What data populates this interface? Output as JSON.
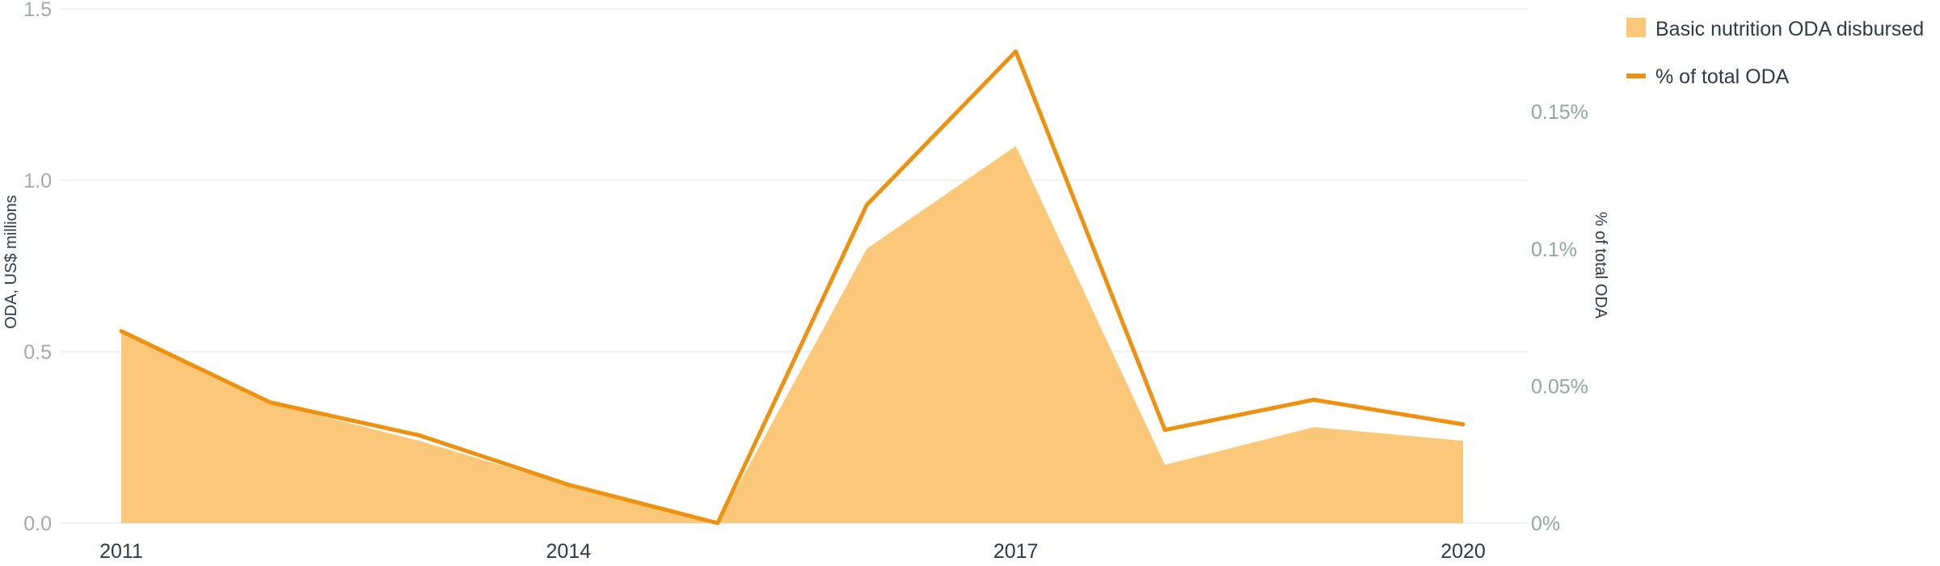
{
  "chart_data": {
    "type": "area",
    "x": [
      2011,
      2012,
      2013,
      2014,
      2015,
      2016,
      2017,
      2018,
      2019,
      2020
    ],
    "x_ticks": [
      "2011",
      "2014",
      "2017",
      "2020"
    ],
    "xlim": [
      2011,
      2020
    ],
    "series": [
      {
        "name": "Basic nutrition ODA disbursed",
        "type": "area",
        "axis": "left",
        "color": "#fbc779",
        "values": [
          0.56,
          0.35,
          0.24,
          0.11,
          0.0,
          0.8,
          1.1,
          0.17,
          0.28,
          0.24
        ]
      },
      {
        "name": "% of total ODA",
        "type": "line",
        "axis": "right",
        "color": "#ef9110",
        "values": [
          0.07,
          0.044,
          0.032,
          0.014,
          0.0,
          0.116,
          0.172,
          0.034,
          0.045,
          0.036
        ]
      }
    ],
    "y_left": {
      "label": "ODA, US$ millions",
      "lim": [
        0,
        1.5
      ],
      "ticks": [
        0,
        0.5,
        1.0,
        1.5
      ],
      "tick_labels": [
        "0.0",
        "0.5",
        "1.0",
        "1.5"
      ]
    },
    "y_right": {
      "label": "% of total ODA",
      "lim": [
        0,
        0.1875
      ],
      "ticks": [
        0,
        0.05,
        0.1,
        0.15
      ],
      "tick_labels": [
        "0%",
        "0.05%",
        "0.1%",
        "0.15%"
      ]
    },
    "grid": true,
    "legend": "top-right"
  }
}
